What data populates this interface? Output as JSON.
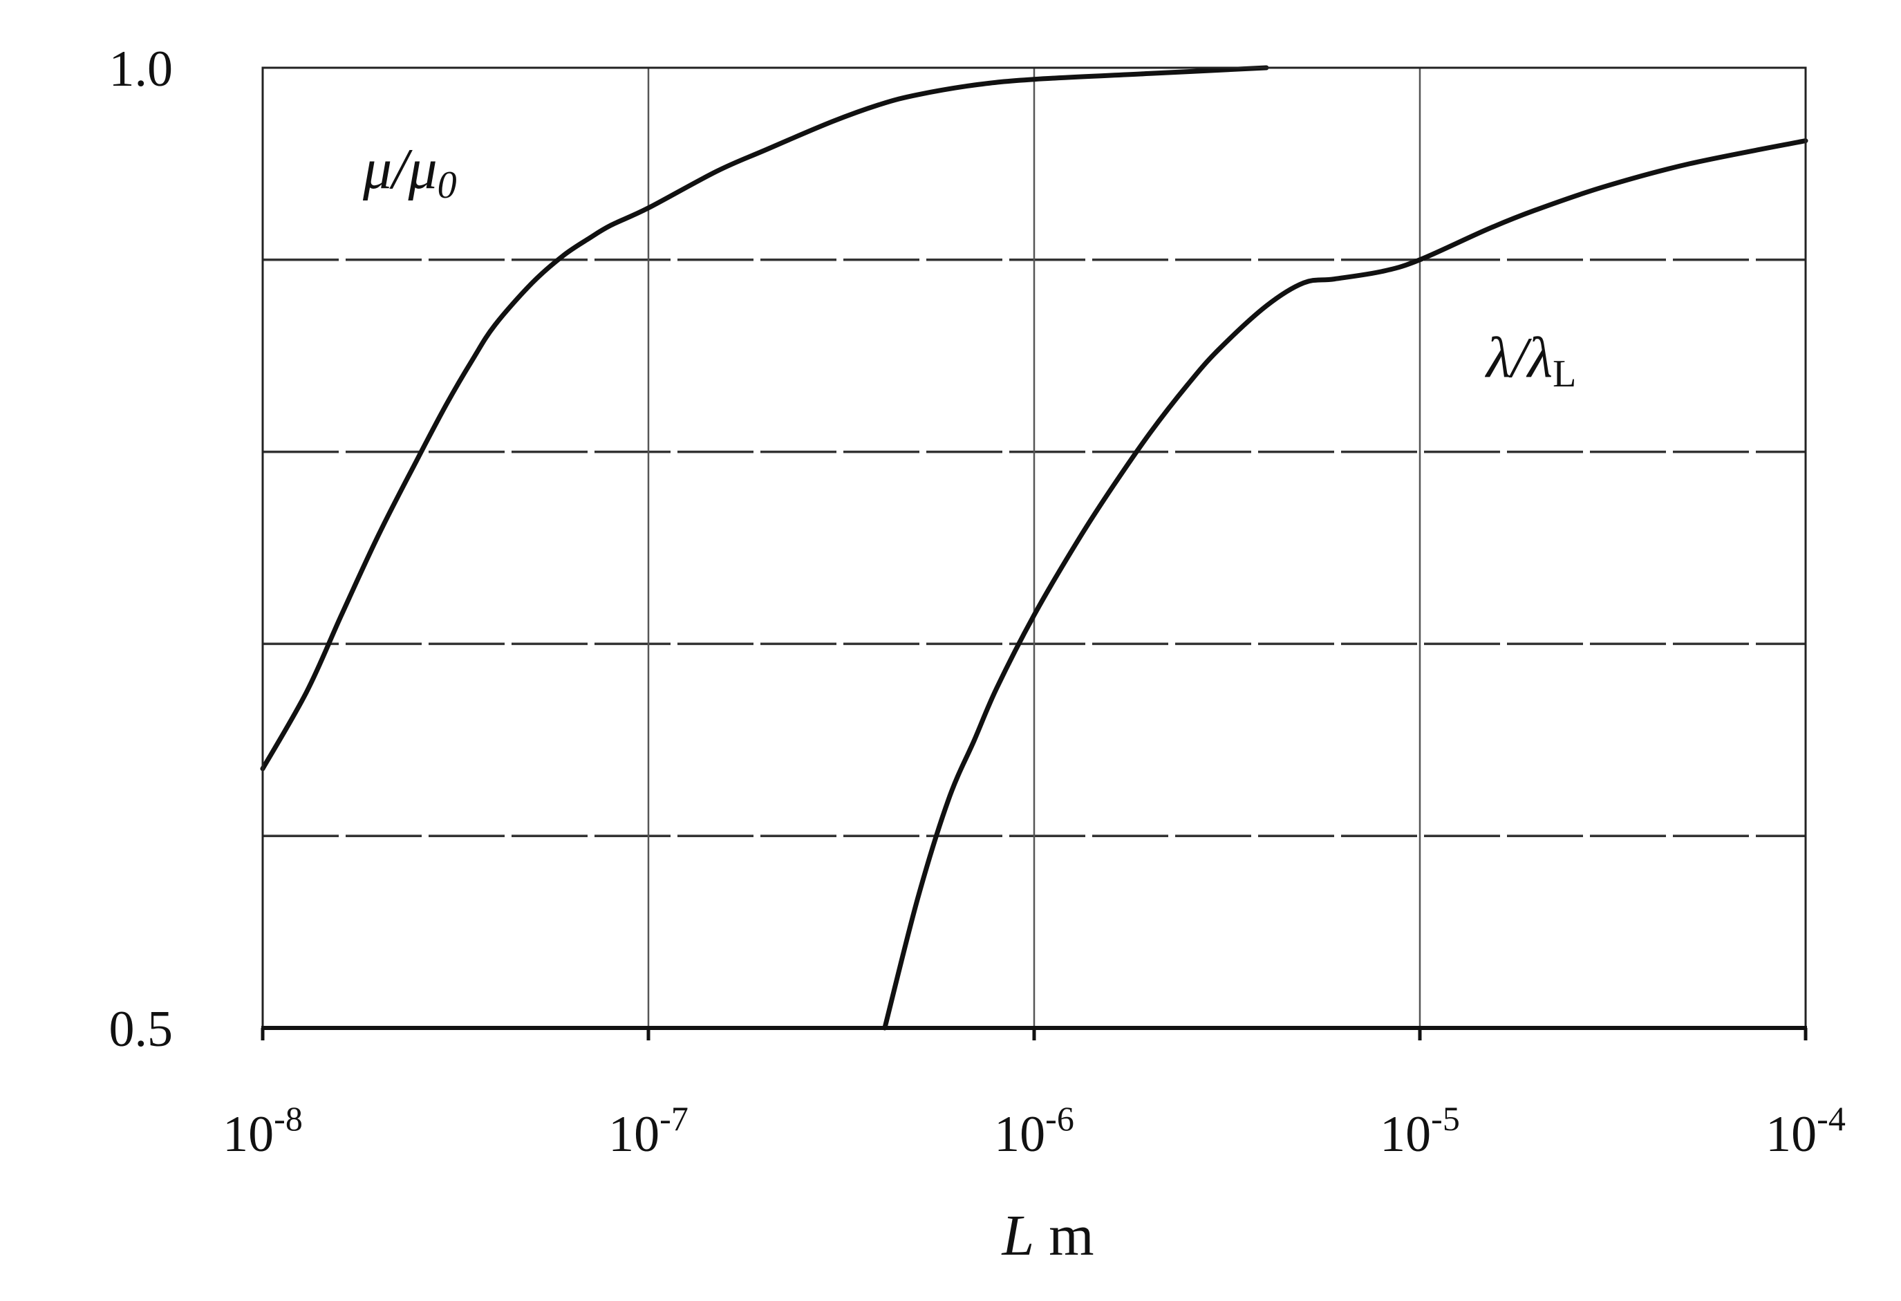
{
  "chart_data": {
    "type": "line",
    "title": "",
    "xlabel": {
      "symbol": "L",
      "unit": "m"
    },
    "ylabel": "",
    "x_scale": "log",
    "xlim": [
      1e-08,
      0.0001
    ],
    "ylim": [
      0.5,
      1.0
    ],
    "x_ticks": [
      {
        "base": "10",
        "exp": "-8",
        "value": 1e-08
      },
      {
        "base": "10",
        "exp": "-7",
        "value": 1e-07
      },
      {
        "base": "10",
        "exp": "-6",
        "value": 1e-06
      },
      {
        "base": "10",
        "exp": "-5",
        "value": 1e-05
      },
      {
        "base": "10",
        "exp": "-4",
        "value": 0.0001
      }
    ],
    "y_ticks": [
      {
        "label": "0.5",
        "value": 0.5
      },
      {
        "label": "1.0",
        "value": 1.0
      }
    ],
    "y_gridlines": [
      0.6,
      0.7,
      0.8,
      0.9
    ],
    "grid": true,
    "legend": "none",
    "series": [
      {
        "name": "μ/μ0",
        "label_main": "μ/μ",
        "label_sub": "0",
        "label_sub_italic": true,
        "x": [
          1e-08,
          1.3e-08,
          1.6e-08,
          2e-08,
          2.5e-08,
          3e-08,
          3.5e-08,
          4e-08,
          5e-08,
          6e-08,
          7e-08,
          8e-08,
          1e-07,
          1.5e-07,
          2e-07,
          3e-07,
          4e-07,
          5e-07,
          7e-07,
          1e-06,
          2e-06,
          4e-06
        ],
        "y": [
          0.635,
          0.675,
          0.715,
          0.757,
          0.795,
          0.825,
          0.848,
          0.866,
          0.888,
          0.902,
          0.911,
          0.918,
          0.927,
          0.946,
          0.957,
          0.972,
          0.981,
          0.986,
          0.991,
          0.994,
          0.997,
          1.0
        ]
      },
      {
        "name": "λ/λL",
        "label_main": "λ/λ",
        "label_sub": "L",
        "label_sub_italic": false,
        "x": [
          4.1e-07,
          5e-07,
          6e-07,
          7e-07,
          8e-07,
          1e-06,
          1.3e-06,
          1.6e-06,
          2e-06,
          2.5e-06,
          3e-06,
          4e-06,
          5e-06,
          6e-06,
          8e-06,
          1e-05,
          1.5e-05,
          2e-05,
          3e-05,
          5e-05,
          0.0001
        ],
        "y": [
          0.5,
          0.568,
          0.619,
          0.65,
          0.677,
          0.715,
          0.754,
          0.782,
          0.81,
          0.835,
          0.853,
          0.876,
          0.888,
          0.89,
          0.894,
          0.9,
          0.916,
          0.926,
          0.938,
          0.95,
          0.962
        ]
      }
    ]
  }
}
